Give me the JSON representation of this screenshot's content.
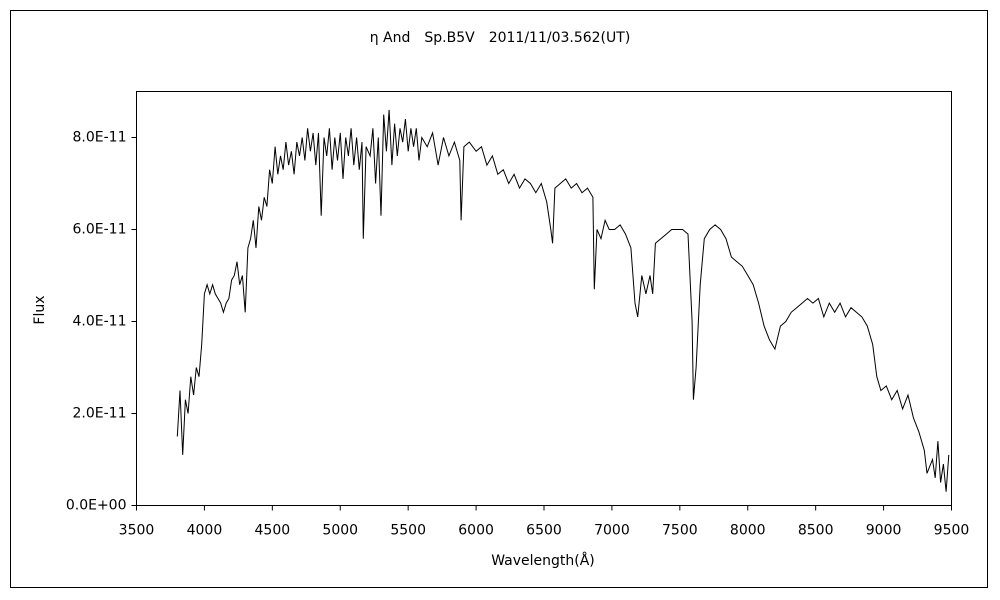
{
  "chart_data": {
    "type": "line",
    "title": "η And　Sp.B5V　2011/11/03.562(UT)",
    "x_label": "Wavelength(Å)",
    "y_label": "Flux",
    "xlim": [
      3500,
      9500
    ],
    "xticks": [
      3500,
      4000,
      4500,
      5000,
      5500,
      6000,
      6500,
      7000,
      7500,
      8000,
      8500,
      9000,
      9500
    ],
    "ylim": [
      0,
      9e-11
    ],
    "yticks": [
      {
        "value": 0,
        "label": "0.0E+00"
      },
      {
        "value": 2e-11,
        "label": "2.0E-11"
      },
      {
        "value": 4e-11,
        "label": "4.0E-11"
      },
      {
        "value": 6e-11,
        "label": "6.0E-11"
      },
      {
        "value": 8e-11,
        "label": "8.0E-11"
      }
    ],
    "x": [
      3800,
      3820,
      3840,
      3860,
      3880,
      3900,
      3920,
      3940,
      3960,
      3980,
      4000,
      4020,
      4040,
      4060,
      4080,
      4100,
      4120,
      4140,
      4160,
      4180,
      4200,
      4220,
      4240,
      4260,
      4280,
      4300,
      4320,
      4340,
      4360,
      4380,
      4400,
      4420,
      4440,
      4460,
      4480,
      4500,
      4520,
      4540,
      4560,
      4580,
      4600,
      4620,
      4640,
      4660,
      4680,
      4700,
      4720,
      4740,
      4760,
      4780,
      4800,
      4820,
      4840,
      4860,
      4880,
      4900,
      4920,
      4940,
      4960,
      4980,
      5000,
      5020,
      5040,
      5060,
      5080,
      5100,
      5120,
      5140,
      5160,
      5170,
      5190,
      5220,
      5240,
      5260,
      5280,
      5300,
      5320,
      5340,
      5360,
      5380,
      5400,
      5420,
      5440,
      5460,
      5480,
      5500,
      5520,
      5540,
      5560,
      5580,
      5600,
      5640,
      5680,
      5720,
      5760,
      5800,
      5840,
      5880,
      5890,
      5910,
      5950,
      6000,
      6040,
      6080,
      6120,
      6160,
      6200,
      6240,
      6280,
      6320,
      6360,
      6400,
      6440,
      6480,
      6520,
      6550,
      6563,
      6580,
      6620,
      6660,
      6700,
      6740,
      6780,
      6820,
      6860,
      6870,
      6890,
      6920,
      6950,
      6980,
      7020,
      7060,
      7100,
      7140,
      7170,
      7190,
      7220,
      7250,
      7280,
      7300,
      7320,
      7360,
      7400,
      7440,
      7480,
      7520,
      7560,
      7590,
      7600,
      7620,
      7650,
      7680,
      7720,
      7760,
      7800,
      7840,
      7880,
      7920,
      7960,
      8000,
      8040,
      8080,
      8120,
      8160,
      8200,
      8240,
      8280,
      8320,
      8360,
      8400,
      8440,
      8480,
      8520,
      8560,
      8600,
      8640,
      8680,
      8720,
      8760,
      8800,
      8840,
      8880,
      8920,
      8950,
      8980,
      9020,
      9060,
      9100,
      9140,
      9180,
      9220,
      9260,
      9300,
      9320,
      9360,
      9380,
      9400,
      9420,
      9440,
      9460,
      9480
    ],
    "series": [
      {
        "color": "#000000",
        "values": [
          1.5e-11,
          2.5e-11,
          1.1e-11,
          2.3e-11,
          2e-11,
          2.8e-11,
          2.4e-11,
          3e-11,
          2.8e-11,
          3.5e-11,
          4.6e-11,
          4.8e-11,
          4.6e-11,
          4.8e-11,
          4.6e-11,
          4.5e-11,
          4.4e-11,
          4.2e-11,
          4.4e-11,
          4.5e-11,
          4.9e-11,
          5e-11,
          5.3e-11,
          4.8e-11,
          5e-11,
          4.2e-11,
          5.6e-11,
          5.8e-11,
          6.2e-11,
          5.6e-11,
          6.5e-11,
          6.2e-11,
          6.7e-11,
          6.5e-11,
          7.3e-11,
          7e-11,
          7.8e-11,
          7.2e-11,
          7.6e-11,
          7.3e-11,
          7.9e-11,
          7.4e-11,
          7.7e-11,
          7.2e-11,
          7.9e-11,
          7.6e-11,
          8e-11,
          7.5e-11,
          8.2e-11,
          7.7e-11,
          8.1e-11,
          7.4e-11,
          8.1e-11,
          6.3e-11,
          8e-11,
          7.6e-11,
          8.2e-11,
          7.3e-11,
          8e-11,
          7.5e-11,
          8.1e-11,
          7.1e-11,
          8e-11,
          7.6e-11,
          8.2e-11,
          7.4e-11,
          8e-11,
          7.3e-11,
          7.9e-11,
          5.8e-11,
          7.8e-11,
          7.6e-11,
          8.2e-11,
          7e-11,
          8e-11,
          6.3e-11,
          8.5e-11,
          7.7e-11,
          8.6e-11,
          7.4e-11,
          8.3e-11,
          7.6e-11,
          8.2e-11,
          7.9e-11,
          8.4e-11,
          7.7e-11,
          8.2e-11,
          7.8e-11,
          8.2e-11,
          7.5e-11,
          8e-11,
          7.8e-11,
          8.1e-11,
          7.4e-11,
          8e-11,
          7.6e-11,
          7.9e-11,
          7.5e-11,
          6.2e-11,
          7.8e-11,
          7.9e-11,
          7.7e-11,
          7.8e-11,
          7.4e-11,
          7.6e-11,
          7.2e-11,
          7.3e-11,
          7e-11,
          7.2e-11,
          6.9e-11,
          7.1e-11,
          7e-11,
          6.8e-11,
          7e-11,
          6.6e-11,
          6e-11,
          5.7e-11,
          6.9e-11,
          7e-11,
          7.1e-11,
          6.9e-11,
          7e-11,
          6.8e-11,
          6.9e-11,
          6.7e-11,
          4.7e-11,
          6e-11,
          5.8e-11,
          6.2e-11,
          6e-11,
          6e-11,
          6.1e-11,
          5.9e-11,
          5.6e-11,
          4.4e-11,
          4.1e-11,
          5e-11,
          4.6e-11,
          5e-11,
          4.6e-11,
          5.7e-11,
          5.8e-11,
          5.9e-11,
          6e-11,
          6e-11,
          6e-11,
          5.9e-11,
          4e-11,
          2.3e-11,
          3e-11,
          4.8e-11,
          5.8e-11,
          6e-11,
          6.1e-11,
          6e-11,
          5.8e-11,
          5.4e-11,
          5.3e-11,
          5.2e-11,
          5e-11,
          4.8e-11,
          4.4e-11,
          3.9e-11,
          3.6e-11,
          3.4e-11,
          3.9e-11,
          4e-11,
          4.2e-11,
          4.3e-11,
          4.4e-11,
          4.5e-11,
          4.4e-11,
          4.5e-11,
          4.1e-11,
          4.4e-11,
          4.2e-11,
          4.4e-11,
          4.1e-11,
          4.3e-11,
          4.2e-11,
          4.1e-11,
          3.9e-11,
          3.5e-11,
          2.8e-11,
          2.5e-11,
          2.6e-11,
          2.3e-11,
          2.5e-11,
          2.1e-11,
          2.4e-11,
          1.9e-11,
          1.6e-11,
          1.2e-11,
          7e-12,
          1e-11,
          6e-12,
          1.4e-11,
          5e-12,
          9e-12,
          3e-12,
          1.1e-11
        ]
      }
    ]
  }
}
